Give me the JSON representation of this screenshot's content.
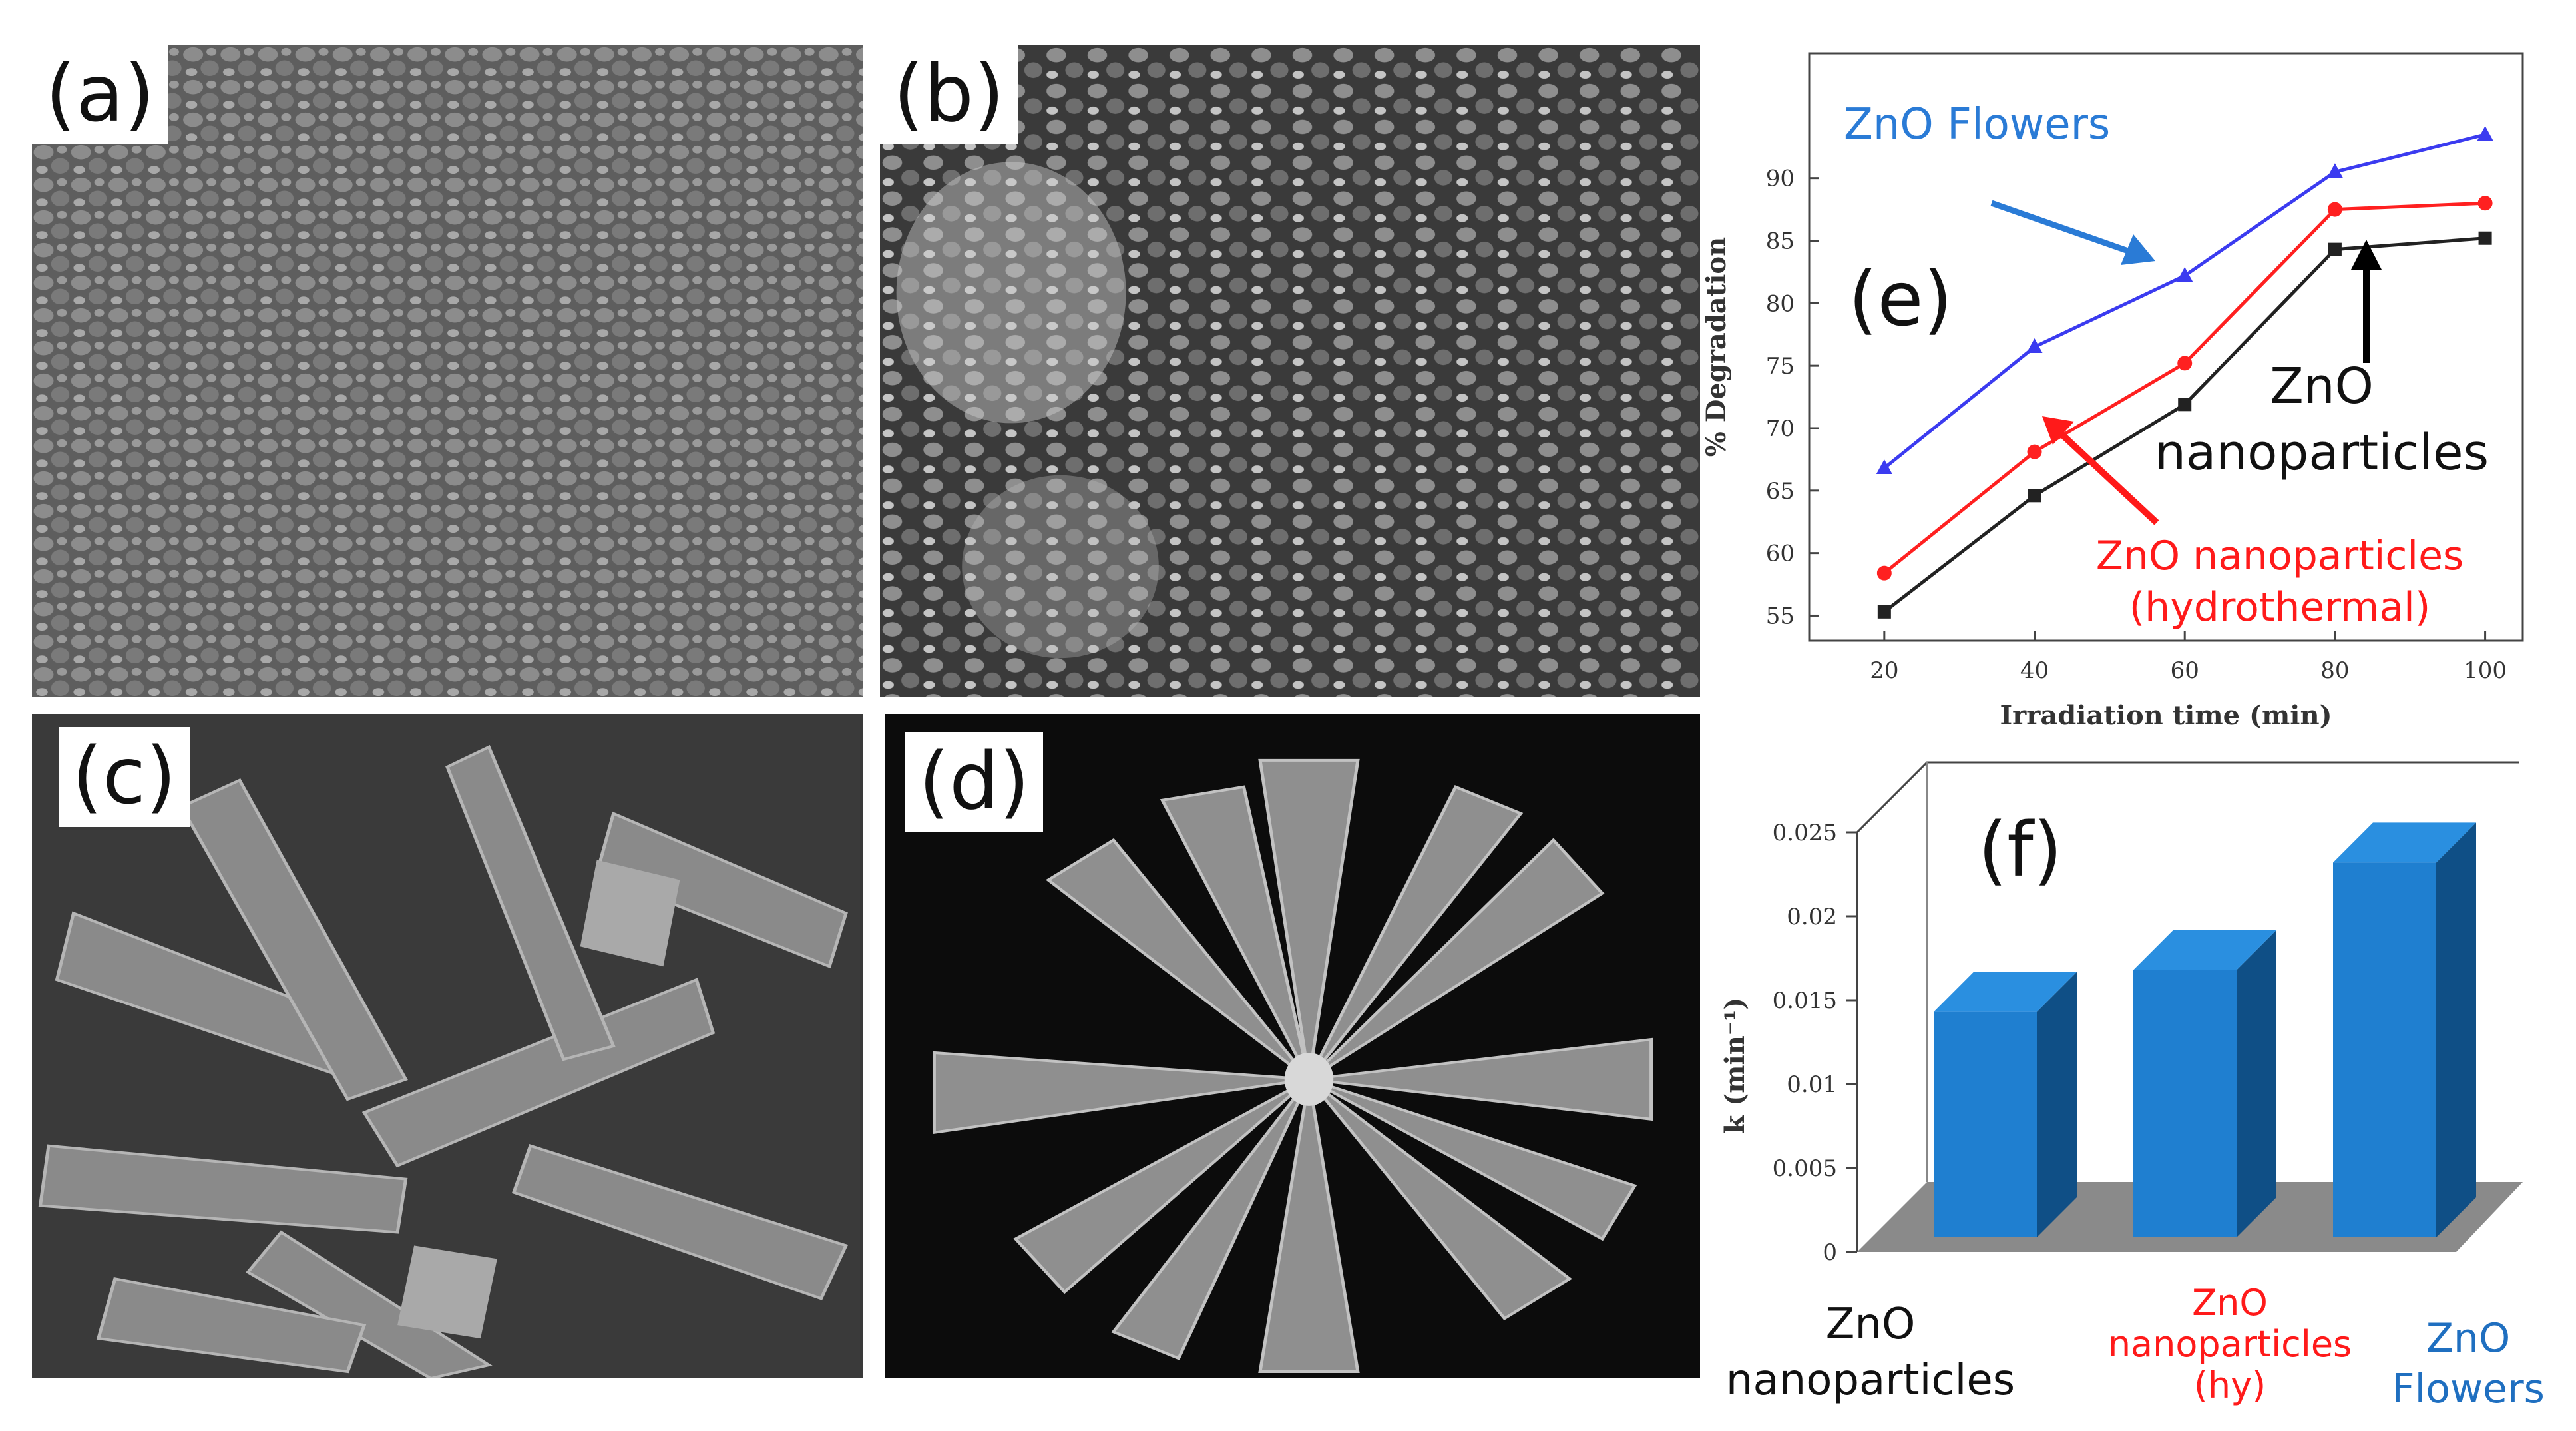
{
  "panels": {
    "a": {
      "label": "(a)"
    },
    "b": {
      "label": "(b)"
    },
    "c": {
      "label": "(c)"
    },
    "d": {
      "label": "(d)"
    }
  },
  "chart_data": [
    {
      "id": "e",
      "panel_label": "(e)",
      "type": "line",
      "xlabel": "Irradiation time (min)",
      "ylabel": "% Degradation",
      "x": [
        20,
        40,
        60,
        80,
        100
      ],
      "xlim": [
        10,
        105
      ],
      "ylim": [
        53,
        100
      ],
      "yticks": [
        55,
        60,
        65,
        70,
        75,
        80,
        85,
        90
      ],
      "series": [
        {
          "name": "ZnO Flowers",
          "color": "#3b3bf0",
          "label_color": "#2a7bd6",
          "marker": "triangle",
          "values": [
            66.8,
            76.5,
            82.2,
            90.5,
            93.5
          ]
        },
        {
          "name": "ZnO nanoparticles (hydrothermal)",
          "label_lines": [
            "ZnO nanoparticles",
            "(hydrothermal)"
          ],
          "color": "#ff2020",
          "label_color": "#ff1a1a",
          "marker": "circle",
          "values": [
            58.4,
            68.1,
            75.2,
            87.5,
            88.0
          ]
        },
        {
          "name": "ZnO nanoparticles",
          "label_lines": [
            "ZnO",
            "nanoparticles"
          ],
          "color": "#222222",
          "label_color": "#111111",
          "marker": "square",
          "values": [
            55.3,
            64.6,
            71.9,
            84.3,
            85.2
          ]
        }
      ]
    },
    {
      "id": "f",
      "panel_label": "(f)",
      "type": "bar",
      "ylabel": "k (min⁻¹)",
      "ylim": [
        0,
        0.025
      ],
      "yticks": [
        "0",
        "0.005",
        "0.01",
        "0.015",
        "0.02",
        "0.025"
      ],
      "categories": [
        {
          "lines": [
            "ZnO",
            "nanoparticles"
          ],
          "color": "#111111"
        },
        {
          "lines": [
            "ZnO",
            "nanoparticles",
            "(hy)"
          ],
          "color": "#ff1a1a"
        },
        {
          "lines": [
            "ZnO",
            "Flowers"
          ],
          "color": "#1f6fc0"
        }
      ],
      "values": [
        0.0143,
        0.0168,
        0.0232
      ],
      "colors": {
        "bar_front": "#1f7fd0",
        "bar_side": "#0f4f86",
        "bar_top": "#2a8fe0",
        "floor": "#8a8a8a"
      }
    }
  ]
}
